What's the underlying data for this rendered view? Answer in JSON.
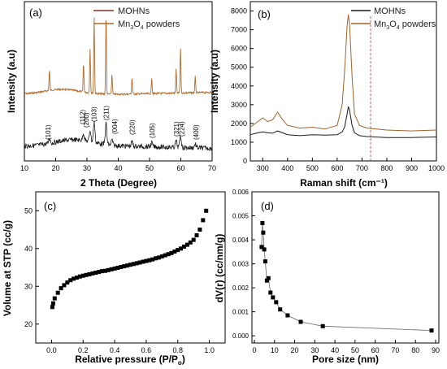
{
  "chart_data": [
    {
      "panel": "(a)",
      "type": "line",
      "xlabel": "2 Theta (Degree)",
      "ylabel": "Intensity (a.u)",
      "xlim": [
        10,
        70
      ],
      "xticks": [
        "10",
        "20",
        "30",
        "40",
        "50",
        "60",
        "70"
      ],
      "legend": {
        "position": "top-right"
      },
      "series": [
        {
          "name": "MOHNs",
          "color": "#8a2a2a"
        },
        {
          "name": "Mn3O4 powders",
          "color": "#b06a2a"
        }
      ],
      "mn3o4_peaks": [
        {
          "x": 18.0,
          "h": 0.25
        },
        {
          "x": 28.9,
          "h": 0.35
        },
        {
          "x": 31.0,
          "h": 0.55
        },
        {
          "x": 32.3,
          "h": 0.95
        },
        {
          "x": 36.1,
          "h": 1.0
        },
        {
          "x": 38.0,
          "h": 0.25
        },
        {
          "x": 44.4,
          "h": 0.2
        },
        {
          "x": 50.7,
          "h": 0.2
        },
        {
          "x": 58.5,
          "h": 0.3
        },
        {
          "x": 59.9,
          "h": 0.55
        },
        {
          "x": 64.6,
          "h": 0.2
        }
      ],
      "annotations": [
        {
          "x": 17.5,
          "label": "(101)"
        },
        {
          "x": 28.6,
          "label": "(112)"
        },
        {
          "x": 29.7,
          "label": "(200)"
        },
        {
          "x": 32.2,
          "label": "(103)"
        },
        {
          "x": 36.1,
          "label": "(211)"
        },
        {
          "x": 38.8,
          "label": "(004)"
        },
        {
          "x": 44.4,
          "label": "(220)"
        },
        {
          "x": 50.8,
          "label": "(105)"
        },
        {
          "x": 58.6,
          "label": "(321)"
        },
        {
          "x": 60.2,
          "label": "(224)"
        },
        {
          "x": 64.8,
          "label": "(400)"
        }
      ]
    },
    {
      "panel": "(b)",
      "type": "line",
      "xlabel": "Raman shift (cm⁻¹)",
      "ylabel": "Intensity (a.u)",
      "xlim": [
        250,
        1000
      ],
      "ylim": [
        0,
        8500
      ],
      "xticks": [
        "300",
        "400",
        "500",
        "600",
        "700",
        "800",
        "900",
        "1000"
      ],
      "yticks": [
        "0",
        "1000",
        "2000",
        "3000",
        "4000",
        "5000",
        "6000",
        "7000",
        "8000"
      ],
      "legend": {
        "position": "top-right"
      },
      "series": [
        {
          "name": "MOHNs",
          "color": "#1a1a1a",
          "x": [
            250,
            280,
            300,
            320,
            340,
            360,
            380,
            400,
            450,
            500,
            550,
            600,
            620,
            630,
            640,
            645,
            650,
            660,
            670,
            690,
            720,
            800,
            900,
            1000
          ],
          "y": [
            1400,
            1500,
            1550,
            1500,
            1480,
            1600,
            1500,
            1400,
            1350,
            1400,
            1380,
            1400,
            1550,
            1800,
            2500,
            2900,
            2700,
            1900,
            1500,
            1350,
            1300,
            1250,
            1250,
            1280
          ]
        },
        {
          "name": "Mn3O4 powders",
          "color": "#a0622a",
          "x": [
            250,
            280,
            300,
            320,
            340,
            360,
            380,
            400,
            450,
            500,
            550,
            600,
            620,
            630,
            640,
            645,
            650,
            660,
            670,
            690,
            720,
            800,
            900,
            1000
          ],
          "y": [
            1800,
            2100,
            2300,
            2100,
            2200,
            2600,
            2200,
            1900,
            1750,
            1800,
            1700,
            1900,
            3000,
            4800,
            7200,
            7800,
            7300,
            4500,
            2500,
            1900,
            1750,
            1650,
            1600,
            1650
          ]
        }
      ]
    },
    {
      "panel": "(c)",
      "type": "scatter",
      "xlabel": "Relative pressure (P/P",
      "xlabel_sub": "o",
      "xlabel_end": ")",
      "ylabel": "Volume at STP (cc/g)",
      "xlim": [
        -0.1,
        1.1
      ],
      "ylim": [
        15,
        55
      ],
      "xticks": [
        "0.0",
        "0.2",
        "0.4",
        "0.6",
        "0.8",
        "1.0"
      ],
      "yticks": [
        "20",
        "30",
        "40",
        "50"
      ],
      "series": [
        {
          "name": "",
          "color": "#000000",
          "x": [
            0.005,
            0.01,
            0.02,
            0.04,
            0.06,
            0.08,
            0.1,
            0.12,
            0.14,
            0.16,
            0.18,
            0.2,
            0.22,
            0.24,
            0.26,
            0.28,
            0.3,
            0.32,
            0.34,
            0.36,
            0.38,
            0.4,
            0.42,
            0.44,
            0.46,
            0.48,
            0.5,
            0.52,
            0.54,
            0.56,
            0.58,
            0.6,
            0.62,
            0.64,
            0.66,
            0.68,
            0.7,
            0.72,
            0.74,
            0.76,
            0.78,
            0.8,
            0.82,
            0.84,
            0.86,
            0.88,
            0.9,
            0.92,
            0.94,
            0.96,
            0.98
          ],
          "y": [
            24.5,
            25.5,
            26.8,
            28.3,
            29.5,
            30.3,
            31.0,
            31.6,
            32.0,
            32.3,
            32.6,
            32.8,
            33.0,
            33.2,
            33.4,
            33.6,
            33.8,
            34.0,
            34.1,
            34.3,
            34.5,
            34.7,
            34.9,
            35.1,
            35.3,
            35.5,
            35.7,
            35.9,
            36.1,
            36.3,
            36.5,
            36.7,
            36.9,
            37.1,
            37.4,
            37.6,
            37.9,
            38.2,
            38.5,
            38.8,
            39.2,
            39.6,
            40.0,
            40.5,
            41.0,
            41.6,
            42.3,
            43.5,
            45.0,
            47.5,
            50.0
          ]
        }
      ]
    },
    {
      "panel": "(d)",
      "type": "scatter",
      "xlabel": "Pore size (nm)",
      "ylabel": "dV(r) (cc/nm/g)",
      "xlim": [
        0,
        90
      ],
      "ylim": [
        -0.0003,
        0.006
      ],
      "xticks": [
        "0",
        "10",
        "20",
        "30",
        "40",
        "50",
        "60",
        "70",
        "80",
        "90"
      ],
      "yticks": [
        "0.000",
        "0.001",
        "0.002",
        "0.003",
        "0.004",
        "0.005",
        "0.006"
      ],
      "series": [
        {
          "name": "",
          "color": "#000000",
          "x": [
            3.6,
            4.0,
            4.4,
            4.9,
            5.4,
            6.2,
            7.0,
            8.0,
            9.2,
            10.8,
            12.8,
            16.5,
            23.0,
            34.0,
            88.0
          ],
          "y": [
            0.0037,
            0.0047,
            0.0043,
            0.0036,
            0.0031,
            0.0023,
            0.0024,
            0.0018,
            0.0016,
            0.0014,
            0.0011,
            0.00085,
            0.00058,
            0.0004,
            0.00022
          ]
        }
      ]
    }
  ]
}
